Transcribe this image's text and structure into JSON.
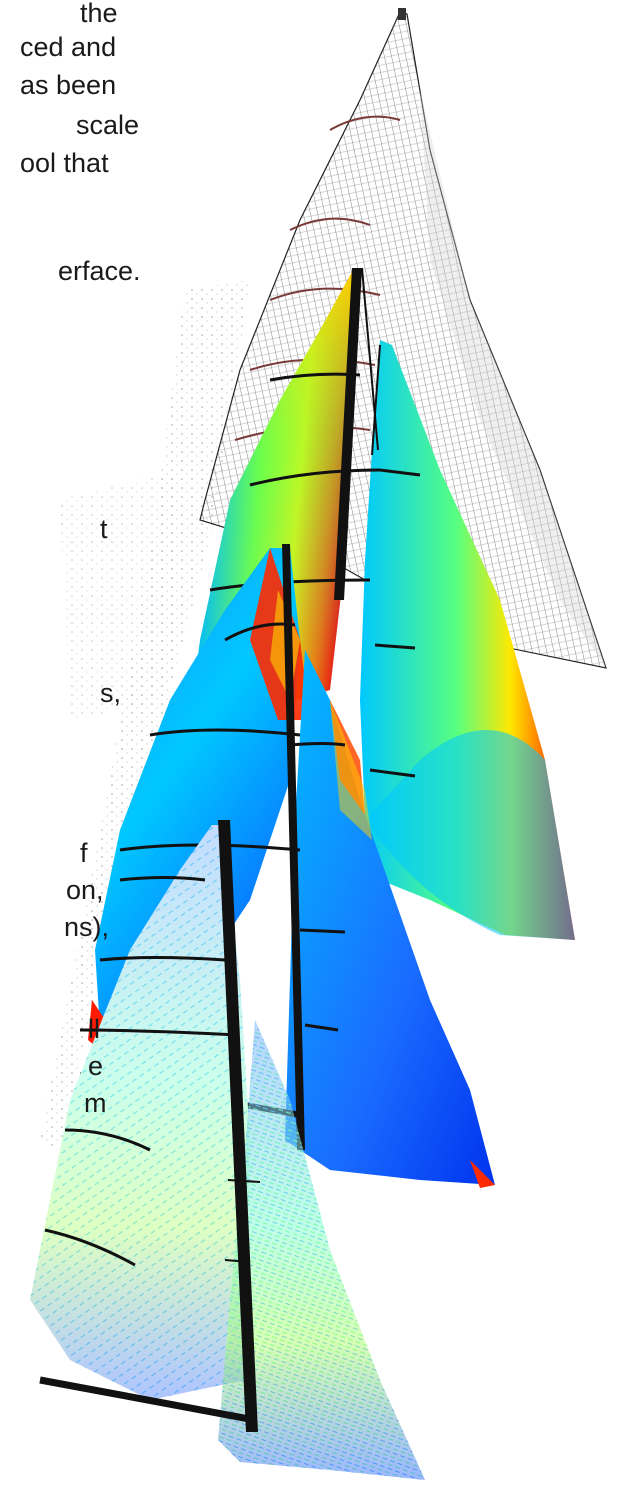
{
  "text_fragments": [
    "the",
    "ced and",
    "as been",
    "scale",
    "ool that",
    "erface.",
    "t",
    "s,",
    "f",
    "on,",
    "ns),",
    "ll",
    "e",
    "m"
  ],
  "colors": {
    "background": "#ffffff",
    "text": "#1a1a1a",
    "rig": "#111111",
    "batten": "#1a1a1a",
    "pressure_low": "#0033ff",
    "pressure_mid": "#00ff66",
    "pressure_high": "#ff0000",
    "mesh": "#444444"
  }
}
